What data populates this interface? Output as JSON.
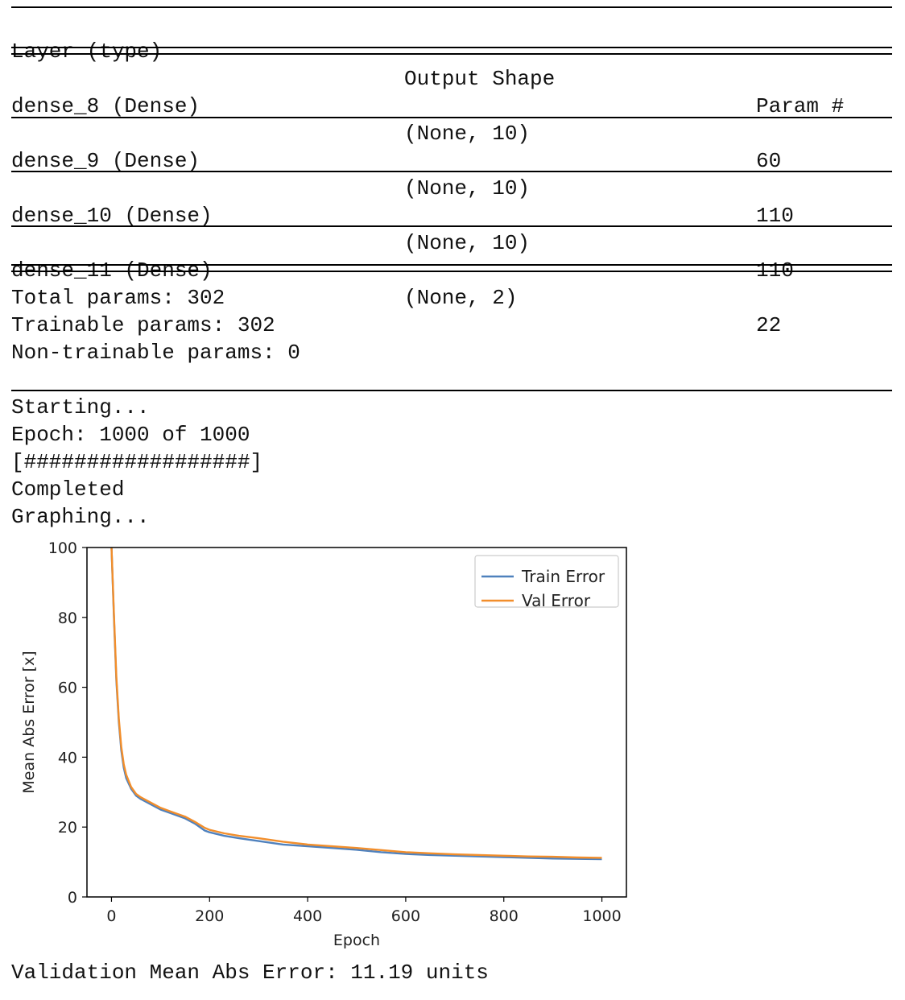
{
  "summary": {
    "headers": {
      "layer": "Layer (type)",
      "shape": "Output Shape",
      "params": "Param #"
    },
    "rows": [
      {
        "layer": "dense_8 (Dense)",
        "shape": "(None, 10)",
        "params": "60"
      },
      {
        "layer": "dense_9 (Dense)",
        "shape": "(None, 10)",
        "params": "110"
      },
      {
        "layer": "dense_10 (Dense)",
        "shape": "(None, 10)",
        "params": "110"
      },
      {
        "layer": "dense_11 (Dense)",
        "shape": "(None, 2)",
        "params": "22"
      }
    ],
    "total": "Total params: 302",
    "trainable": "Trainable params: 302",
    "non_trainable": "Non-trainable params: 0"
  },
  "log": {
    "starting": "Starting...",
    "epoch": "Epoch: 1000 of 1000",
    "progress": "[##################]",
    "completed": "Completed",
    "graphing": "Graphing..."
  },
  "chart_data": {
    "type": "line",
    "xlabel": "Epoch",
    "ylabel": "Mean Abs Error [x]",
    "xlim": [
      -50,
      1050
    ],
    "ylim": [
      0,
      100
    ],
    "xticks": [
      "0",
      "200",
      "400",
      "600",
      "800",
      "1000"
    ],
    "yticks": [
      "0",
      "20",
      "40",
      "60",
      "80",
      "100"
    ],
    "legend_position": "top-right",
    "series": [
      {
        "name": "Train Error",
        "color": "#4f81bd",
        "x": [
          0,
          5,
          10,
          15,
          20,
          25,
          30,
          40,
          50,
          60,
          80,
          100,
          120,
          150,
          170,
          190,
          200,
          230,
          260,
          300,
          350,
          400,
          450,
          500,
          550,
          600,
          650,
          700,
          750,
          800,
          850,
          900,
          950,
          1000
        ],
        "values": [
          100,
          80,
          62,
          50,
          42,
          37,
          34,
          31,
          29,
          28,
          26.5,
          25,
          24,
          22.5,
          21,
          19,
          18.5,
          17.5,
          16.8,
          16,
          15,
          14.5,
          14,
          13.5,
          12.8,
          12.3,
          12,
          11.8,
          11.6,
          11.4,
          11.2,
          11,
          10.9,
          10.8
        ]
      },
      {
        "name": "Val Error",
        "color": "#f28e2b",
        "x": [
          0,
          5,
          10,
          15,
          20,
          25,
          30,
          40,
          50,
          60,
          80,
          100,
          120,
          150,
          170,
          190,
          200,
          230,
          260,
          300,
          350,
          400,
          450,
          500,
          550,
          600,
          650,
          700,
          750,
          800,
          850,
          900,
          950,
          1000
        ],
        "values": [
          100,
          81,
          63,
          51,
          43,
          38,
          35,
          31.5,
          29.5,
          28.5,
          27,
          25.5,
          24.5,
          23,
          21.5,
          19.8,
          19.2,
          18.2,
          17.5,
          16.8,
          15.8,
          15,
          14.5,
          14,
          13.4,
          12.8,
          12.5,
          12.2,
          12,
          11.8,
          11.6,
          11.5,
          11.3,
          11.2
        ]
      }
    ]
  },
  "result": "Validation Mean Abs Error: 11.19 units"
}
